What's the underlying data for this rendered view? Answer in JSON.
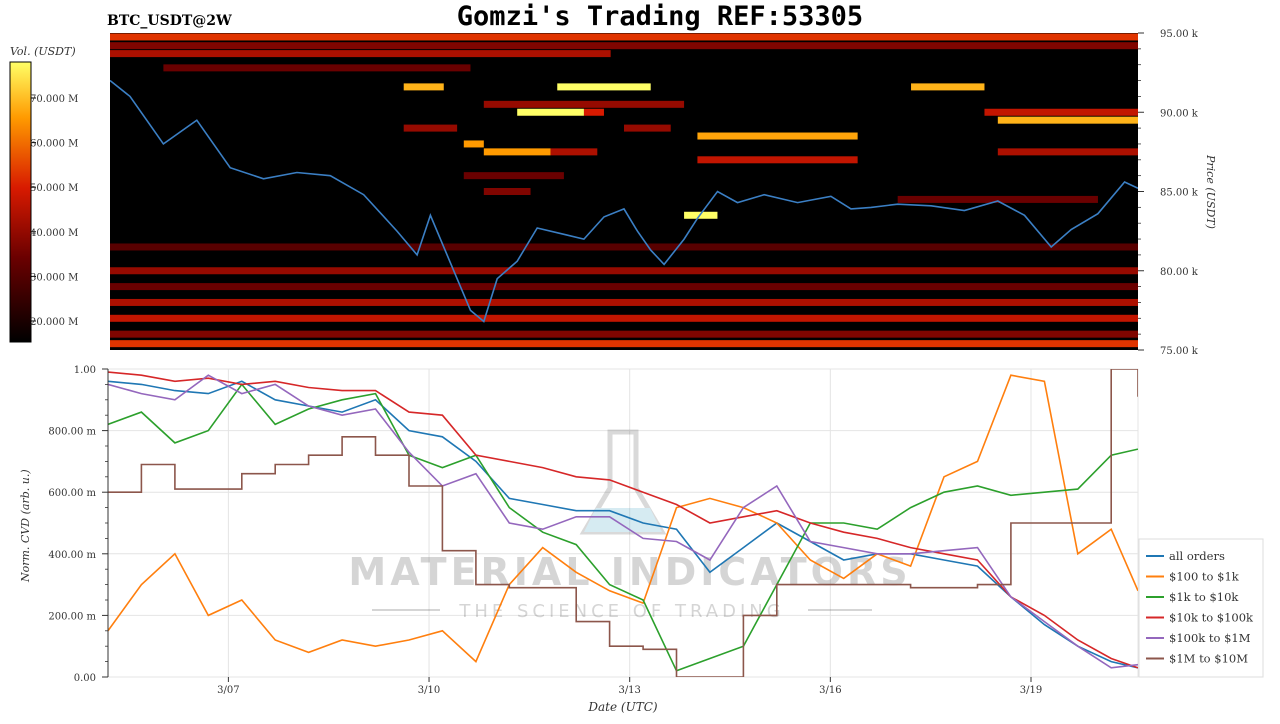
{
  "header": {
    "title": "Gomzi's Trading REF:53305",
    "symbol": "BTC_USDT@2W"
  },
  "watermark": {
    "brand": "MATERIAL INDICATORS",
    "tagline": "THE SCIENCE OF TRADING"
  },
  "heatmap_colorbar": {
    "label": "Vol. (USDT)",
    "ticks": [
      "20.000 M",
      "30.000 M",
      "40.000 M",
      "50.000 M",
      "60.000 M",
      "70.000 M"
    ]
  },
  "chart_data": [
    {
      "type": "heatmap",
      "name": "order-book-heatmap",
      "ylabel": "Price (USDT)",
      "ylim": [
        75000,
        95000
      ],
      "y_ticks": [
        {
          "value": 75000,
          "label": "75.00 k"
        },
        {
          "value": 80000,
          "label": "80.00 k"
        },
        {
          "value": 85000,
          "label": "85.00 k"
        },
        {
          "value": 90000,
          "label": "90.00 k"
        },
        {
          "value": 95000,
          "label": "95.00 k"
        }
      ],
      "price_line": {
        "color": "#3b7fc4",
        "x": [
          5.2,
          5.5,
          6.0,
          6.5,
          7.0,
          7.5,
          8.0,
          8.5,
          9.0,
          9.5,
          9.8,
          10.0,
          10.3,
          10.6,
          10.8,
          11.0,
          11.3,
          11.6,
          12.0,
          12.3,
          12.6,
          12.9,
          13.1,
          13.3,
          13.5,
          13.8,
          14.0,
          14.3,
          14.6,
          15.0,
          15.5,
          16.0,
          16.3,
          16.6,
          17.0,
          17.5,
          18.0,
          18.5,
          18.9,
          19.3,
          19.6,
          20.0,
          20.4,
          20.6
        ],
        "y": [
          92000,
          91000,
          88000,
          89500,
          86500,
          85800,
          86200,
          86000,
          84800,
          82500,
          81000,
          83500,
          80500,
          77500,
          76800,
          79500,
          80600,
          82700,
          82300,
          82000,
          83400,
          83900,
          82500,
          81300,
          80400,
          82000,
          83300,
          85000,
          84300,
          84800,
          84300,
          84700,
          83900,
          84000,
          84200,
          84100,
          83800,
          84400,
          83500,
          81500,
          82600,
          83600,
          85600,
          85200
        ]
      },
      "bands": [
        {
          "price": 94750,
          "start": 5.2,
          "end": 20.6,
          "intensity": 0.6
        },
        {
          "price": 94200,
          "start": 5.2,
          "end": 20.6,
          "intensity": 0.35
        },
        {
          "price": 93700,
          "start": 5.2,
          "end": 12.7,
          "intensity": 0.45
        },
        {
          "price": 92800,
          "start": 6.0,
          "end": 10.6,
          "intensity": 0.3
        },
        {
          "price": 91600,
          "start": 9.6,
          "end": 10.2,
          "intensity": 0.85
        },
        {
          "price": 91600,
          "start": 11.9,
          "end": 13.3,
          "intensity": 1.0
        },
        {
          "price": 91600,
          "start": 17.2,
          "end": 18.3,
          "intensity": 0.85
        },
        {
          "price": 90500,
          "start": 10.8,
          "end": 13.8,
          "intensity": 0.4
        },
        {
          "price": 90000,
          "start": 11.3,
          "end": 12.3,
          "intensity": 1.0
        },
        {
          "price": 90000,
          "start": 12.3,
          "end": 12.6,
          "intensity": 0.55
        },
        {
          "price": 90000,
          "start": 18.3,
          "end": 20.6,
          "intensity": 0.5
        },
        {
          "price": 89500,
          "start": 18.5,
          "end": 20.6,
          "intensity": 0.85
        },
        {
          "price": 89000,
          "start": 9.6,
          "end": 10.4,
          "intensity": 0.4
        },
        {
          "price": 89000,
          "start": 12.9,
          "end": 13.6,
          "intensity": 0.4
        },
        {
          "price": 88500,
          "start": 14.0,
          "end": 16.4,
          "intensity": 0.82
        },
        {
          "price": 88000,
          "start": 10.5,
          "end": 10.8,
          "intensity": 0.8
        },
        {
          "price": 87500,
          "start": 10.8,
          "end": 11.8,
          "intensity": 0.8
        },
        {
          "price": 87500,
          "start": 11.8,
          "end": 12.5,
          "intensity": 0.45
        },
        {
          "price": 87500,
          "start": 18.5,
          "end": 20.6,
          "intensity": 0.45
        },
        {
          "price": 87000,
          "start": 14.0,
          "end": 16.4,
          "intensity": 0.5
        },
        {
          "price": 86000,
          "start": 10.5,
          "end": 12.0,
          "intensity": 0.3
        },
        {
          "price": 85000,
          "start": 10.8,
          "end": 11.5,
          "intensity": 0.35
        },
        {
          "price": 84500,
          "start": 17.0,
          "end": 20.0,
          "intensity": 0.3
        },
        {
          "price": 83500,
          "start": 13.8,
          "end": 14.3,
          "intensity": 1.0
        },
        {
          "price": 81500,
          "start": 5.2,
          "end": 20.6,
          "intensity": 0.25
        },
        {
          "price": 80000,
          "start": 5.2,
          "end": 20.6,
          "intensity": 0.4
        },
        {
          "price": 79000,
          "start": 5.2,
          "end": 20.6,
          "intensity": 0.3
        },
        {
          "price": 78000,
          "start": 5.2,
          "end": 20.6,
          "intensity": 0.45
        },
        {
          "price": 77000,
          "start": 5.2,
          "end": 20.6,
          "intensity": 0.5
        },
        {
          "price": 76000,
          "start": 5.2,
          "end": 20.6,
          "intensity": 0.35
        },
        {
          "price": 75400,
          "start": 5.2,
          "end": 20.6,
          "intensity": 0.6
        }
      ]
    },
    {
      "type": "line",
      "name": "cvd",
      "xlabel": "Date (UTC)",
      "ylabel": "Norm. CVD (arb. u.)",
      "ylim": [
        0,
        1
      ],
      "xlim": [
        5.2,
        20.6
      ],
      "x_ticks": [
        {
          "value": 7,
          "label": "3/07"
        },
        {
          "value": 10,
          "label": "3/10"
        },
        {
          "value": 13,
          "label": "3/13"
        },
        {
          "value": 16,
          "label": "3/16"
        },
        {
          "value": 19,
          "label": "3/19"
        }
      ],
      "y_ticks": [
        {
          "value": 0,
          "label": "0.00"
        },
        {
          "value": 0.2,
          "label": "200.00 m"
        },
        {
          "value": 0.4,
          "label": "400.00 m"
        },
        {
          "value": 0.6,
          "label": "600.00 m"
        },
        {
          "value": 0.8,
          "label": "800.00 m"
        },
        {
          "value": 1.0,
          "label": "1.00"
        }
      ],
      "x": [
        5.2,
        5.7,
        6.2,
        6.7,
        7.2,
        7.7,
        8.2,
        8.7,
        9.2,
        9.7,
        10.2,
        10.7,
        11.2,
        11.7,
        12.2,
        12.7,
        13.2,
        13.7,
        14.2,
        14.7,
        15.2,
        15.7,
        16.2,
        16.7,
        17.2,
        17.7,
        18.2,
        18.7,
        19.2,
        19.7,
        20.2,
        20.6
      ],
      "series": [
        {
          "name": "all orders",
          "color": "#1f77b4",
          "step": false,
          "values": [
            0.96,
            0.95,
            0.93,
            0.92,
            0.96,
            0.9,
            0.88,
            0.86,
            0.9,
            0.8,
            0.78,
            0.7,
            0.58,
            0.56,
            0.54,
            0.54,
            0.5,
            0.48,
            0.34,
            0.42,
            0.5,
            0.44,
            0.38,
            0.4,
            0.4,
            0.38,
            0.36,
            0.26,
            0.17,
            0.1,
            0.05,
            0.03
          ]
        },
        {
          "name": "$100 to $1k",
          "color": "#ff7f0e",
          "step": false,
          "values": [
            0.15,
            0.3,
            0.4,
            0.2,
            0.25,
            0.12,
            0.08,
            0.12,
            0.1,
            0.12,
            0.15,
            0.05,
            0.3,
            0.42,
            0.34,
            0.28,
            0.24,
            0.55,
            0.58,
            0.55,
            0.5,
            0.38,
            0.32,
            0.4,
            0.36,
            0.65,
            0.7,
            0.98,
            0.96,
            0.4,
            0.48,
            0.28
          ]
        },
        {
          "name": "$1k to $10k",
          "color": "#2ca02c",
          "step": false,
          "values": [
            0.82,
            0.86,
            0.76,
            0.8,
            0.95,
            0.82,
            0.87,
            0.9,
            0.92,
            0.72,
            0.68,
            0.72,
            0.55,
            0.47,
            0.43,
            0.3,
            0.25,
            0.02,
            0.06,
            0.1,
            0.3,
            0.5,
            0.5,
            0.48,
            0.55,
            0.6,
            0.62,
            0.59,
            0.6,
            0.61,
            0.72,
            0.74
          ]
        },
        {
          "name": "$10k to $100k",
          "color": "#d62728",
          "step": false,
          "values": [
            0.99,
            0.98,
            0.96,
            0.97,
            0.95,
            0.96,
            0.94,
            0.93,
            0.93,
            0.86,
            0.85,
            0.72,
            0.7,
            0.68,
            0.65,
            0.64,
            0.6,
            0.56,
            0.5,
            0.52,
            0.54,
            0.5,
            0.47,
            0.45,
            0.42,
            0.4,
            0.38,
            0.26,
            0.2,
            0.12,
            0.06,
            0.03
          ]
        },
        {
          "name": "$100k to $1M",
          "color": "#9467bd",
          "step": false,
          "values": [
            0.95,
            0.92,
            0.9,
            0.98,
            0.92,
            0.95,
            0.88,
            0.85,
            0.87,
            0.73,
            0.62,
            0.66,
            0.5,
            0.48,
            0.52,
            0.52,
            0.45,
            0.44,
            0.38,
            0.55,
            0.62,
            0.44,
            0.42,
            0.4,
            0.4,
            0.41,
            0.42,
            0.26,
            0.18,
            0.1,
            0.03,
            0.04
          ]
        },
        {
          "name": "$1M to $10M",
          "color": "#8c564b",
          "step": true,
          "values": [
            0.6,
            0.69,
            0.61,
            0.61,
            0.66,
            0.69,
            0.72,
            0.78,
            0.72,
            0.62,
            0.41,
            0.3,
            0.29,
            0.29,
            0.18,
            0.1,
            0.09,
            0.0,
            0.0,
            0.2,
            0.3,
            0.3,
            0.3,
            0.3,
            0.29,
            0.29,
            0.3,
            0.5,
            0.5,
            0.5,
            1.0,
            0.91
          ]
        }
      ],
      "legend": "right"
    }
  ]
}
